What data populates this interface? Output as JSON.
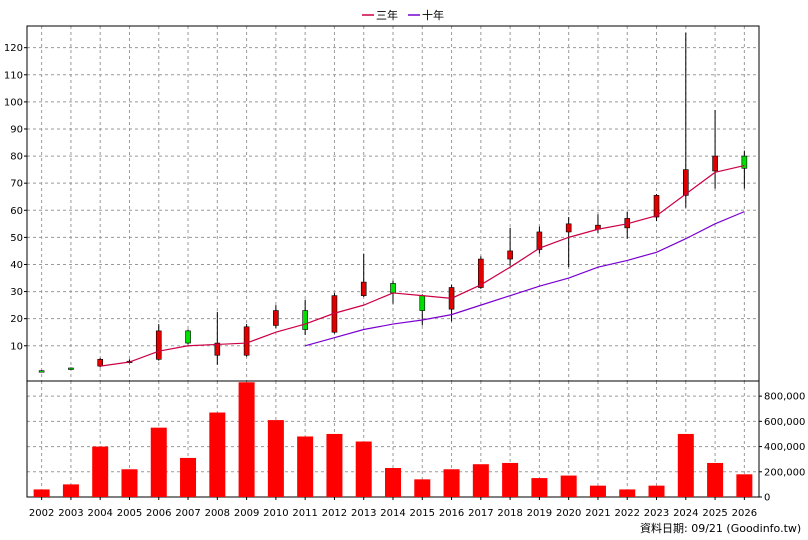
{
  "chart_data": {
    "type": "candlestick+volume",
    "legend": [
      {
        "name": "三年",
        "color": "#cc0044"
      },
      {
        "name": "十年",
        "color": "#7a00d0"
      }
    ],
    "years": [
      "2002",
      "2003",
      "2004",
      "2005",
      "2006",
      "2007",
      "2008",
      "2009",
      "2010",
      "2011",
      "2012",
      "2013",
      "2014",
      "2015",
      "2016",
      "2017",
      "2018",
      "2019",
      "2020",
      "2021",
      "2022",
      "2023",
      "2024",
      "2025",
      "2026"
    ],
    "price_axis": {
      "ticks": [
        10,
        20,
        30,
        40,
        50,
        60,
        70,
        80,
        90,
        100,
        110,
        120
      ],
      "ylim": [
        -3,
        128
      ]
    },
    "volume_axis": {
      "tick_labels": [
        "800,000",
        "600,000",
        "400,000",
        "200,000",
        "0"
      ],
      "ticks": [
        800000,
        600000,
        400000,
        200000,
        0
      ],
      "ylim": [
        0,
        920000
      ]
    },
    "candles": [
      {
        "year": "2002",
        "open": 0.5,
        "close": 0.8,
        "high": 1.0,
        "low": 0.3
      },
      {
        "year": "2003",
        "open": 1.5,
        "close": 1.8,
        "high": 2.0,
        "low": 1.2
      },
      {
        "year": "2004",
        "open": 5.0,
        "close": 2.5,
        "high": 5.5,
        "low": 2.0
      },
      {
        "year": "2005",
        "open": 4.0,
        "close": 4.3,
        "high": 5.0,
        "low": 3.5
      },
      {
        "year": "2006",
        "open": 15.5,
        "close": 5.0,
        "high": 18.0,
        "low": 4.5
      },
      {
        "year": "2007",
        "open": 11.0,
        "close": 15.5,
        "high": 16.0,
        "low": 10.5
      },
      {
        "year": "2008",
        "open": 11.0,
        "close": 6.5,
        "high": 22.5,
        "low": 3.0
      },
      {
        "year": "2009",
        "open": 17.0,
        "close": 6.5,
        "high": 18.0,
        "low": 6.0
      },
      {
        "year": "2010",
        "open": 23.0,
        "close": 17.5,
        "high": 25.0,
        "low": 16.5
      },
      {
        "year": "2011",
        "open": 16.0,
        "close": 23.0,
        "high": 27.0,
        "low": 14.0
      },
      {
        "year": "2012",
        "open": 28.5,
        "close": 15.0,
        "high": 29.5,
        "low": 14.5
      },
      {
        "year": "2013",
        "open": 33.5,
        "close": 28.5,
        "high": 44.0,
        "low": 28.0
      },
      {
        "year": "2014",
        "open": 29.5,
        "close": 33.0,
        "high": 34.0,
        "low": 25.5
      },
      {
        "year": "2015",
        "open": 23.0,
        "close": 28.5,
        "high": 29.0,
        "low": 17.5
      },
      {
        "year": "2016",
        "open": 31.5,
        "close": 23.5,
        "high": 32.5,
        "low": 19.0
      },
      {
        "year": "2017",
        "open": 42.0,
        "close": 31.5,
        "high": 43.0,
        "low": 31.0
      },
      {
        "year": "2018",
        "open": 45.0,
        "close": 42.0,
        "high": 53.5,
        "low": 39.5
      },
      {
        "year": "2019",
        "open": 52.0,
        "close": 45.5,
        "high": 54.0,
        "low": 44.0
      },
      {
        "year": "2020",
        "open": 55.0,
        "close": 52.0,
        "high": 57.5,
        "low": 39.0
      },
      {
        "year": "2021",
        "open": 54.5,
        "close": 53.0,
        "high": 58.5,
        "low": 51.5
      },
      {
        "year": "2022",
        "open": 57.0,
        "close": 53.5,
        "high": 59.5,
        "low": 49.5
      },
      {
        "year": "2023",
        "open": 65.5,
        "close": 57.5,
        "high": 66.0,
        "low": 56.0
      },
      {
        "year": "2024",
        "open": 75.0,
        "close": 65.5,
        "high": 125.5,
        "low": 61.0
      },
      {
        "year": "2025",
        "open": 80.0,
        "close": 74.5,
        "high": 97.0,
        "low": 68.0
      },
      {
        "year": "2026",
        "open": 75.5,
        "close": 80.0,
        "high": 82.0,
        "low": 68.0
      }
    ],
    "series": [
      {
        "name": "三年",
        "start_year": "2004",
        "values": [
          2.5,
          4.0,
          8.0,
          10.0,
          10.5,
          11.0,
          15.0,
          18.0,
          22.0,
          25.0,
          29.5,
          28.5,
          27.5,
          32.5,
          39.0,
          46.0,
          50.0,
          53.0,
          55.0,
          58.0,
          66.0,
          74.0,
          76.5
        ]
      },
      {
        "name": "十年",
        "start_year": "2011",
        "values": [
          10.0,
          13.0,
          16.0,
          18.0,
          19.5,
          21.5,
          25.0,
          28.5,
          32.0,
          35.0,
          39.0,
          41.5,
          44.5,
          49.5,
          55.0,
          59.5
        ]
      }
    ],
    "volume": [
      60000,
      100000,
      400000,
      220000,
      550000,
      310000,
      670000,
      910000,
      610000,
      480000,
      500000,
      440000,
      230000,
      140000,
      220000,
      260000,
      270000,
      150000,
      170000,
      90000,
      60000,
      90000,
      500000,
      270000,
      180000
    ],
    "footer": "資料日期: 09/21  (Goodinfo.tw)"
  }
}
